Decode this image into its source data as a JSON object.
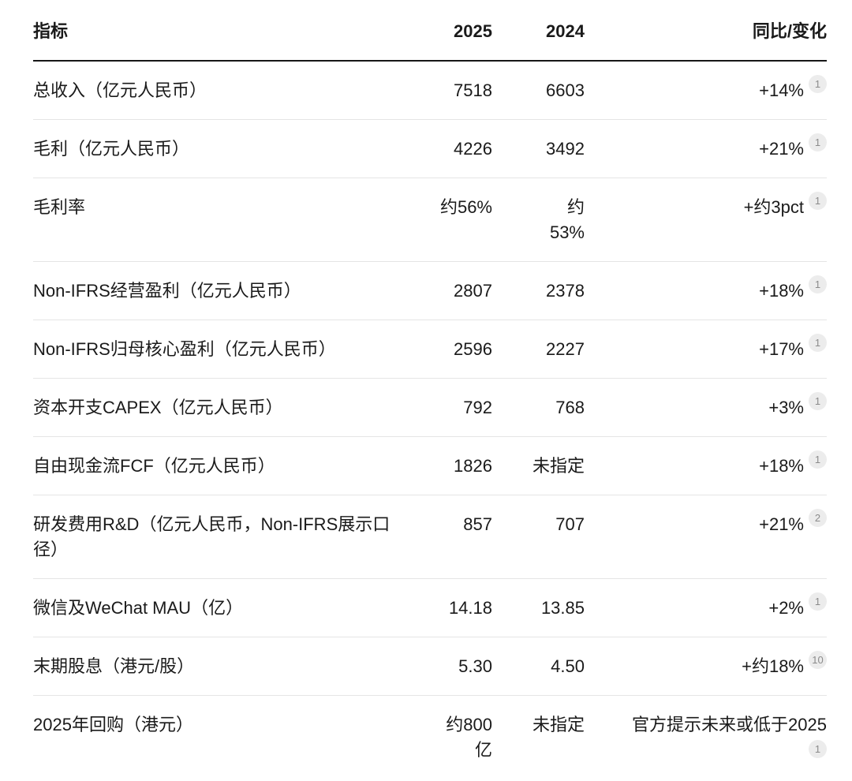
{
  "colors": {
    "text": "#1a1a1a",
    "header_border": "#161617",
    "row_divider": "#e5e5e5",
    "badge_background": "#ececec",
    "badge_text": "#8b8b8b"
  },
  "chart_data": {
    "type": "table",
    "columns": [
      "指标",
      "2025",
      "2024",
      "同比/变化"
    ],
    "rows": [
      {
        "indicator": "总收入（亿元人民币）",
        "v2025": "7518",
        "v2024": "6603",
        "change": "+14%",
        "footnote": "1"
      },
      {
        "indicator": "毛利（亿元人民币）",
        "v2025": "4226",
        "v2024": "3492",
        "change": "+21%",
        "footnote": "1"
      },
      {
        "indicator": "毛利率",
        "v2025": "约56%",
        "v2024": "约\n53%",
        "change": "+约3pct",
        "footnote": "1"
      },
      {
        "indicator": "Non-IFRS经营盈利（亿元人民币）",
        "v2025": "2807",
        "v2024": "2378",
        "change": "+18%",
        "footnote": "1"
      },
      {
        "indicator": "Non-IFRS归母核心盈利（亿元人民币）",
        "v2025": "2596",
        "v2024": "2227",
        "change": "+17%",
        "footnote": "1"
      },
      {
        "indicator": "资本开支CAPEX（亿元人民币）",
        "v2025": "792",
        "v2024": "768",
        "change": "+3%",
        "footnote": "1"
      },
      {
        "indicator": "自由现金流FCF（亿元人民币）",
        "v2025": "1826",
        "v2024": "未指定",
        "change": "+18%",
        "footnote": "1"
      },
      {
        "indicator": "研发费用R&D（亿元人民币，Non-IFRS展示口\n径）",
        "v2025": "857",
        "v2024": "707",
        "change": "+21%",
        "footnote": "2"
      },
      {
        "indicator": "微信及WeChat MAU（亿）",
        "v2025": "14.18",
        "v2024": "13.85",
        "change": "+2%",
        "footnote": "1"
      },
      {
        "indicator": "末期股息（港元/股）",
        "v2025": "5.30",
        "v2024": "4.50",
        "change": "+约18%",
        "footnote": "10"
      },
      {
        "indicator": "2025年回购（港元）",
        "v2025": "约800\n亿",
        "v2024": "未指定",
        "change": "官方提示未来或低于2025",
        "footnote": "1"
      }
    ]
  }
}
